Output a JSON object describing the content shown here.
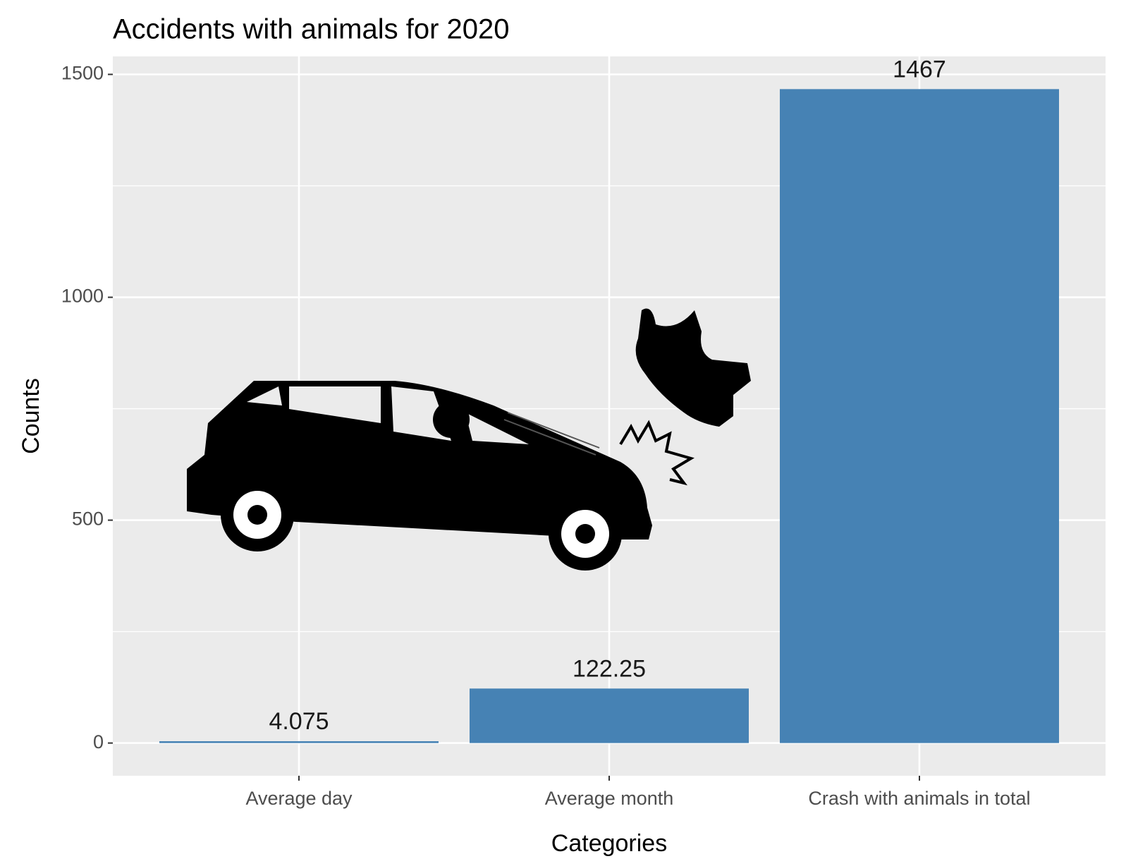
{
  "chart_data": {
    "type": "bar",
    "title": "Accidents with animals for 2020",
    "x_label": "Categories",
    "y_label": "Counts",
    "categories": [
      "Average day",
      "Average month",
      "Crash with animals in total"
    ],
    "values": [
      4.075,
      122.25,
      1467
    ],
    "color": "#4682b4",
    "ylim": [
      -73.35,
      1540.35
    ],
    "yticks": [
      0,
      500,
      1000,
      1500
    ],
    "grid": true
  }
}
